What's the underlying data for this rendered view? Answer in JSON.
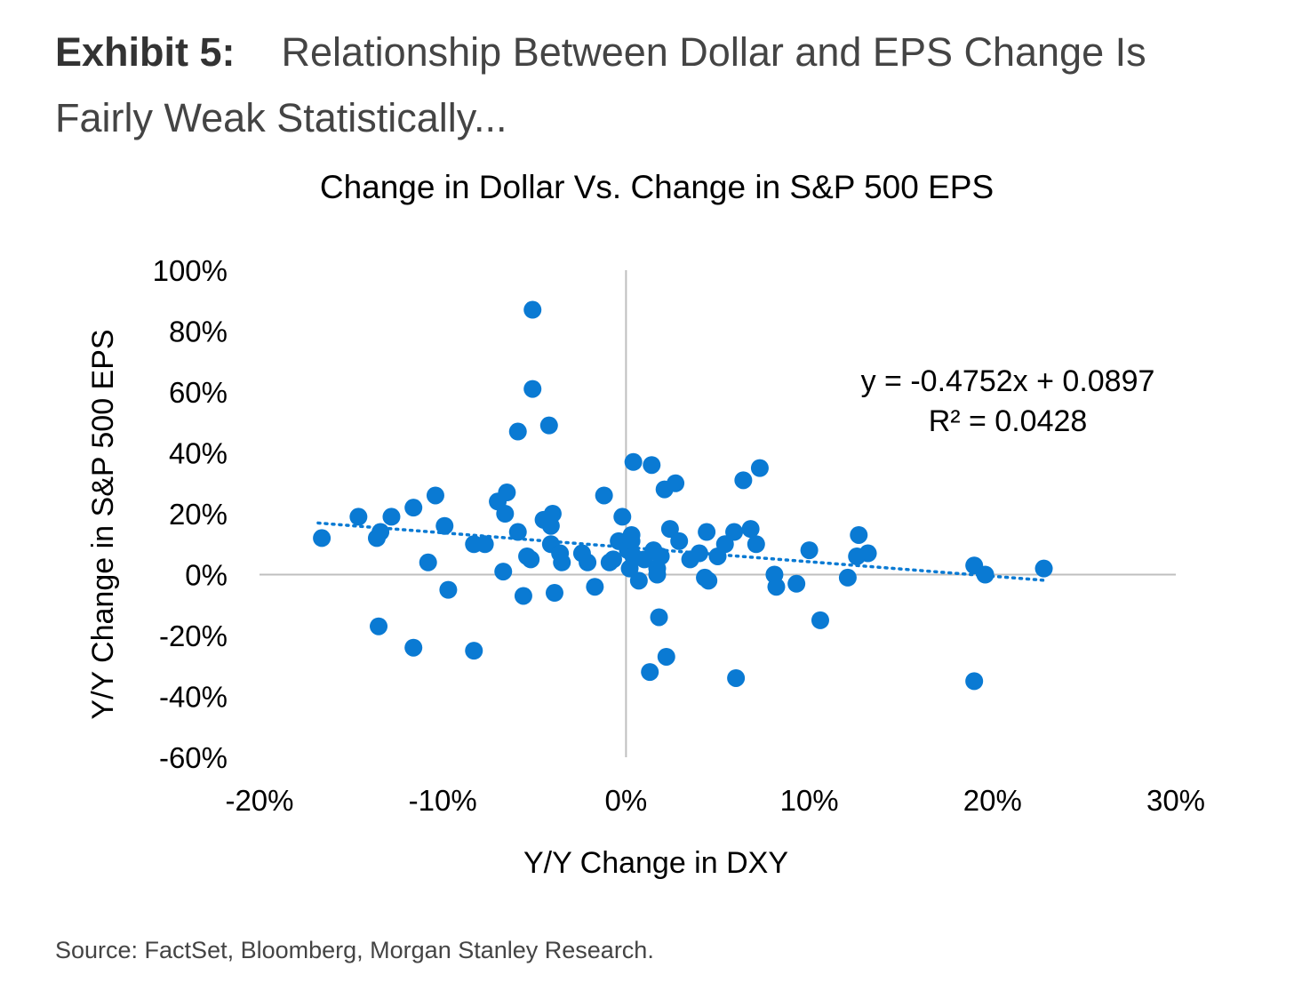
{
  "header": {
    "exhibit_label": "Exhibit 5:",
    "title": "Relationship Between Dollar and EPS Change Is Fairly Weak Statistically..."
  },
  "source": "Source: FactSet, Bloomberg, Morgan Stanley Research.",
  "colors": {
    "point": "#0a7ad3",
    "axis": "#bfbfbf"
  },
  "chart_data": {
    "type": "scatter",
    "title": "Change in Dollar Vs. Change in S&P 500 EPS",
    "xlabel": "Y/Y Change in DXY",
    "ylabel": "Y/Y Change in S&P 500 EPS",
    "xlim": [
      -0.2,
      0.3
    ],
    "ylim": [
      -0.6,
      1.0
    ],
    "x_ticks": [
      -0.2,
      -0.1,
      0,
      0.1,
      0.2,
      0.3
    ],
    "x_tick_labels": [
      "-20%",
      "-10%",
      "0%",
      "10%",
      "20%",
      "30%"
    ],
    "y_ticks": [
      1.0,
      0.8,
      0.6,
      0.4,
      0.2,
      0,
      -0.2,
      -0.4,
      -0.6
    ],
    "y_tick_labels": [
      "100%",
      "80%",
      "60%",
      "40%",
      "20%",
      "0%",
      "-20%",
      "-40%",
      "-60%"
    ],
    "grid": false,
    "trendline": {
      "style": "dotted",
      "slope": -0.4752,
      "intercept": 0.0897,
      "x_range": [
        -0.168,
        0.23
      ],
      "equation_label": "y = -0.4752x + 0.0897",
      "r2_label": "R² = 0.0428"
    },
    "points": [
      [
        -0.166,
        0.12
      ],
      [
        -0.146,
        0.19
      ],
      [
        -0.136,
        0.12
      ],
      [
        -0.134,
        0.14
      ],
      [
        -0.128,
        0.19
      ],
      [
        -0.135,
        -0.17
      ],
      [
        -0.116,
        0.22
      ],
      [
        -0.116,
        -0.24
      ],
      [
        -0.108,
        0.04
      ],
      [
        -0.104,
        0.26
      ],
      [
        -0.099,
        0.16
      ],
      [
        -0.097,
        -0.05
      ],
      [
        -0.083,
        0.1
      ],
      [
        -0.083,
        -0.25
      ],
      [
        -0.077,
        0.1
      ],
      [
        -0.07,
        0.24
      ],
      [
        -0.066,
        0.2
      ],
      [
        -0.065,
        0.27
      ],
      [
        -0.067,
        0.01
      ],
      [
        -0.059,
        0.47
      ],
      [
        -0.059,
        0.14
      ],
      [
        -0.056,
        -0.07
      ],
      [
        -0.054,
        0.06
      ],
      [
        -0.052,
        0.05
      ],
      [
        -0.051,
        0.87
      ],
      [
        -0.051,
        0.61
      ],
      [
        -0.045,
        0.18
      ],
      [
        -0.042,
        0.49
      ],
      [
        -0.041,
        0.16
      ],
      [
        -0.04,
        0.2
      ],
      [
        -0.041,
        0.1
      ],
      [
        -0.039,
        -0.06
      ],
      [
        -0.036,
        0.07
      ],
      [
        -0.035,
        0.04
      ],
      [
        -0.024,
        0.07
      ],
      [
        -0.021,
        0.04
      ],
      [
        -0.017,
        -0.04
      ],
      [
        -0.012,
        0.26
      ],
      [
        -0.009,
        0.04
      ],
      [
        -0.007,
        0.05
      ],
      [
        -0.004,
        0.11
      ],
      [
        -0.002,
        0.19
      ],
      [
        0.001,
        0.08
      ],
      [
        0.003,
        0.11
      ],
      [
        0.003,
        0.13
      ],
      [
        0.002,
        0.02
      ],
      [
        0.004,
        0.06
      ],
      [
        0.004,
        0.37
      ],
      [
        0.007,
        -0.02
      ],
      [
        0.01,
        0.05
      ],
      [
        0.014,
        0.36
      ],
      [
        0.013,
        -0.32
      ],
      [
        0.015,
        0.08
      ],
      [
        0.017,
        0.02
      ],
      [
        0.017,
        0.0
      ],
      [
        0.018,
        -0.14
      ],
      [
        0.019,
        0.06
      ],
      [
        0.021,
        0.28
      ],
      [
        0.022,
        -0.27
      ],
      [
        0.024,
        0.15
      ],
      [
        0.027,
        0.3
      ],
      [
        0.029,
        0.11
      ],
      [
        0.035,
        0.05
      ],
      [
        0.04,
        0.07
      ],
      [
        0.043,
        -0.01
      ],
      [
        0.044,
        0.14
      ],
      [
        0.045,
        -0.02
      ],
      [
        0.05,
        0.06
      ],
      [
        0.054,
        0.1
      ],
      [
        0.059,
        0.14
      ],
      [
        0.06,
        -0.34
      ],
      [
        0.064,
        0.31
      ],
      [
        0.068,
        0.15
      ],
      [
        0.071,
        0.1
      ],
      [
        0.073,
        0.35
      ],
      [
        0.081,
        0.0
      ],
      [
        0.082,
        -0.04
      ],
      [
        0.093,
        -0.03
      ],
      [
        0.1,
        0.08
      ],
      [
        0.106,
        -0.15
      ],
      [
        0.121,
        -0.01
      ],
      [
        0.126,
        0.06
      ],
      [
        0.127,
        0.13
      ],
      [
        0.132,
        0.07
      ],
      [
        0.19,
        0.03
      ],
      [
        0.19,
        -0.35
      ],
      [
        0.196,
        0.0
      ],
      [
        0.228,
        0.02
      ]
    ]
  }
}
